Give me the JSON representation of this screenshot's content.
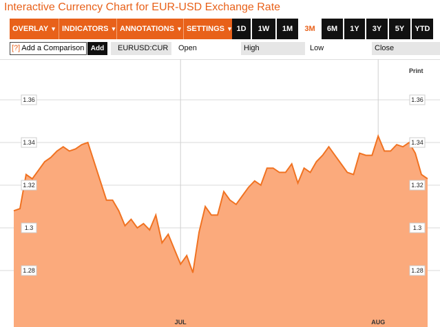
{
  "title": "Interactive Currency Chart for EUR-USD Exchange Rate",
  "toolbar": {
    "menus": [
      {
        "label": "OVERLAY",
        "arrow": "▼"
      },
      {
        "label": "INDICATORS",
        "arrow": "▼"
      },
      {
        "label": "ANNOTATIONS",
        "arrow": "▼"
      },
      {
        "label": "SETTINGS",
        "arrow": "▼"
      }
    ],
    "ranges": [
      "1D",
      "1W",
      "1M",
      "3M",
      "6M",
      "1Y",
      "3Y",
      "5Y",
      "YTD"
    ],
    "active_range": "3M"
  },
  "comparison": {
    "icon": "[?]",
    "label": "Add a Comparison",
    "add_button": "Add"
  },
  "quote": {
    "ticker": "EURUSD:CUR",
    "open_label": "Open",
    "high_label": "High",
    "low_label": "Low",
    "close_label": "Close"
  },
  "chart_print": "Print",
  "colors": {
    "accent": "#e8611a",
    "line": "#f07221",
    "fill": "#fbaa7c",
    "dark": "#111111"
  },
  "chart_data": {
    "type": "area",
    "ylim": [
      1.265,
      1.36
    ],
    "y_ticks": [
      "1.36",
      "1.34",
      "1.32",
      "1.3",
      "1.28"
    ],
    "y_tick_values": [
      1.36,
      1.34,
      1.32,
      1.3,
      1.28
    ],
    "x_labels": [
      {
        "label": "JUL",
        "index": 27
      },
      {
        "label": "AUG",
        "index": 59
      }
    ],
    "values": [
      1.308,
      1.309,
      1.325,
      1.323,
      1.327,
      1.331,
      1.333,
      1.336,
      1.338,
      1.336,
      1.337,
      1.339,
      1.34,
      1.331,
      1.322,
      1.313,
      1.313,
      1.308,
      1.301,
      1.304,
      1.3,
      1.302,
      1.299,
      1.306,
      1.293,
      1.297,
      1.29,
      1.283,
      1.287,
      1.279,
      1.298,
      1.31,
      1.306,
      1.306,
      1.317,
      1.313,
      1.311,
      1.315,
      1.319,
      1.322,
      1.32,
      1.328,
      1.328,
      1.326,
      1.326,
      1.33,
      1.321,
      1.328,
      1.326,
      1.331,
      1.334,
      1.338,
      1.334,
      1.33,
      1.326,
      1.325,
      1.335,
      1.334,
      1.334,
      1.343,
      1.336,
      1.336,
      1.339,
      1.338,
      1.34,
      1.335,
      1.325,
      1.323
    ]
  }
}
